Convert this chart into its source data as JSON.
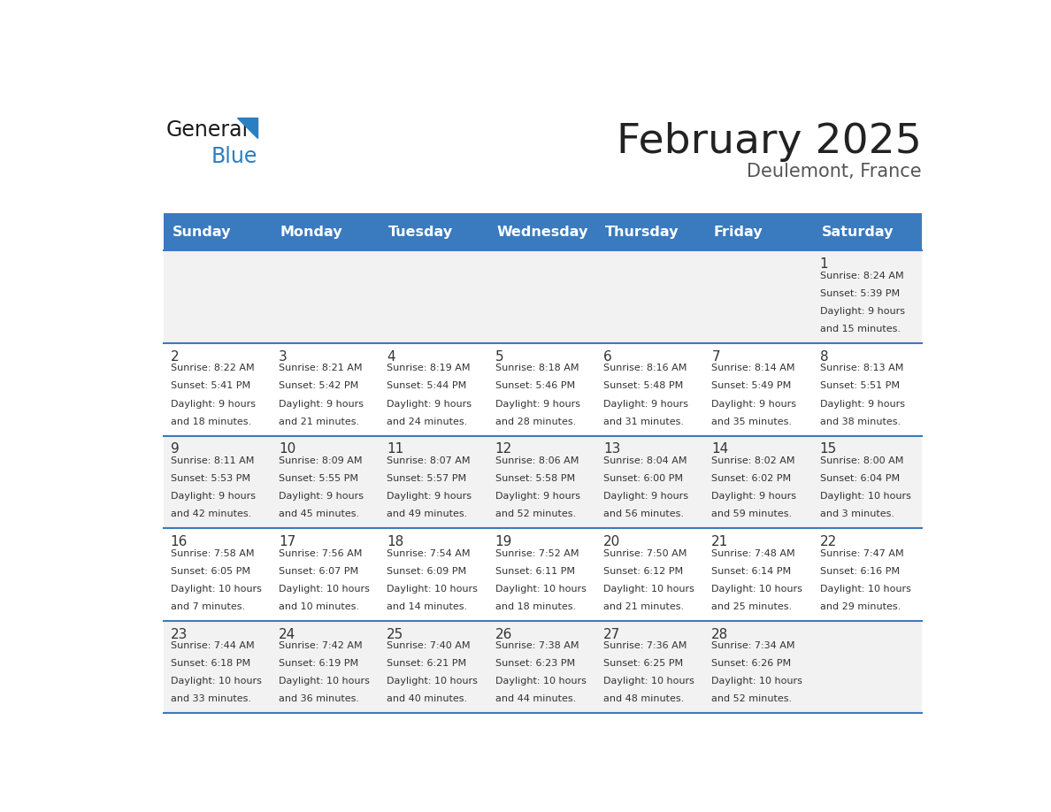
{
  "title": "February 2025",
  "subtitle": "Deulemont, France",
  "days_of_week": [
    "Sunday",
    "Monday",
    "Tuesday",
    "Wednesday",
    "Thursday",
    "Friday",
    "Saturday"
  ],
  "header_bg": "#3a7abf",
  "header_text": "#ffffff",
  "row_bg_odd": "#f2f2f2",
  "row_bg_even": "#ffffff",
  "divider_color": "#3a7abf",
  "day_number_color": "#333333",
  "text_color": "#333333",
  "title_color": "#222222",
  "subtitle_color": "#555555",
  "logo_general_color": "#1a1a1a",
  "logo_blue_color": "#2a7fc1",
  "calendar_data": [
    [
      null,
      null,
      null,
      null,
      null,
      null,
      {
        "day": 1,
        "sunrise": "8:24 AM",
        "sunset": "5:39 PM",
        "daylight": "9 hours and 15 minutes."
      }
    ],
    [
      {
        "day": 2,
        "sunrise": "8:22 AM",
        "sunset": "5:41 PM",
        "daylight": "9 hours and 18 minutes."
      },
      {
        "day": 3,
        "sunrise": "8:21 AM",
        "sunset": "5:42 PM",
        "daylight": "9 hours and 21 minutes."
      },
      {
        "day": 4,
        "sunrise": "8:19 AM",
        "sunset": "5:44 PM",
        "daylight": "9 hours and 24 minutes."
      },
      {
        "day": 5,
        "sunrise": "8:18 AM",
        "sunset": "5:46 PM",
        "daylight": "9 hours and 28 minutes."
      },
      {
        "day": 6,
        "sunrise": "8:16 AM",
        "sunset": "5:48 PM",
        "daylight": "9 hours and 31 minutes."
      },
      {
        "day": 7,
        "sunrise": "8:14 AM",
        "sunset": "5:49 PM",
        "daylight": "9 hours and 35 minutes."
      },
      {
        "day": 8,
        "sunrise": "8:13 AM",
        "sunset": "5:51 PM",
        "daylight": "9 hours and 38 minutes."
      }
    ],
    [
      {
        "day": 9,
        "sunrise": "8:11 AM",
        "sunset": "5:53 PM",
        "daylight": "9 hours and 42 minutes."
      },
      {
        "day": 10,
        "sunrise": "8:09 AM",
        "sunset": "5:55 PM",
        "daylight": "9 hours and 45 minutes."
      },
      {
        "day": 11,
        "sunrise": "8:07 AM",
        "sunset": "5:57 PM",
        "daylight": "9 hours and 49 minutes."
      },
      {
        "day": 12,
        "sunrise": "8:06 AM",
        "sunset": "5:58 PM",
        "daylight": "9 hours and 52 minutes."
      },
      {
        "day": 13,
        "sunrise": "8:04 AM",
        "sunset": "6:00 PM",
        "daylight": "9 hours and 56 minutes."
      },
      {
        "day": 14,
        "sunrise": "8:02 AM",
        "sunset": "6:02 PM",
        "daylight": "9 hours and 59 minutes."
      },
      {
        "day": 15,
        "sunrise": "8:00 AM",
        "sunset": "6:04 PM",
        "daylight": "10 hours and 3 minutes."
      }
    ],
    [
      {
        "day": 16,
        "sunrise": "7:58 AM",
        "sunset": "6:05 PM",
        "daylight": "10 hours and 7 minutes."
      },
      {
        "day": 17,
        "sunrise": "7:56 AM",
        "sunset": "6:07 PM",
        "daylight": "10 hours and 10 minutes."
      },
      {
        "day": 18,
        "sunrise": "7:54 AM",
        "sunset": "6:09 PM",
        "daylight": "10 hours and 14 minutes."
      },
      {
        "day": 19,
        "sunrise": "7:52 AM",
        "sunset": "6:11 PM",
        "daylight": "10 hours and 18 minutes."
      },
      {
        "day": 20,
        "sunrise": "7:50 AM",
        "sunset": "6:12 PM",
        "daylight": "10 hours and 21 minutes."
      },
      {
        "day": 21,
        "sunrise": "7:48 AM",
        "sunset": "6:14 PM",
        "daylight": "10 hours and 25 minutes."
      },
      {
        "day": 22,
        "sunrise": "7:47 AM",
        "sunset": "6:16 PM",
        "daylight": "10 hours and 29 minutes."
      }
    ],
    [
      {
        "day": 23,
        "sunrise": "7:44 AM",
        "sunset": "6:18 PM",
        "daylight": "10 hours and 33 minutes."
      },
      {
        "day": 24,
        "sunrise": "7:42 AM",
        "sunset": "6:19 PM",
        "daylight": "10 hours and 36 minutes."
      },
      {
        "day": 25,
        "sunrise": "7:40 AM",
        "sunset": "6:21 PM",
        "daylight": "10 hours and 40 minutes."
      },
      {
        "day": 26,
        "sunrise": "7:38 AM",
        "sunset": "6:23 PM",
        "daylight": "10 hours and 44 minutes."
      },
      {
        "day": 27,
        "sunrise": "7:36 AM",
        "sunset": "6:25 PM",
        "daylight": "10 hours and 48 minutes."
      },
      {
        "day": 28,
        "sunrise": "7:34 AM",
        "sunset": "6:26 PM",
        "daylight": "10 hours and 52 minutes."
      },
      null
    ]
  ]
}
